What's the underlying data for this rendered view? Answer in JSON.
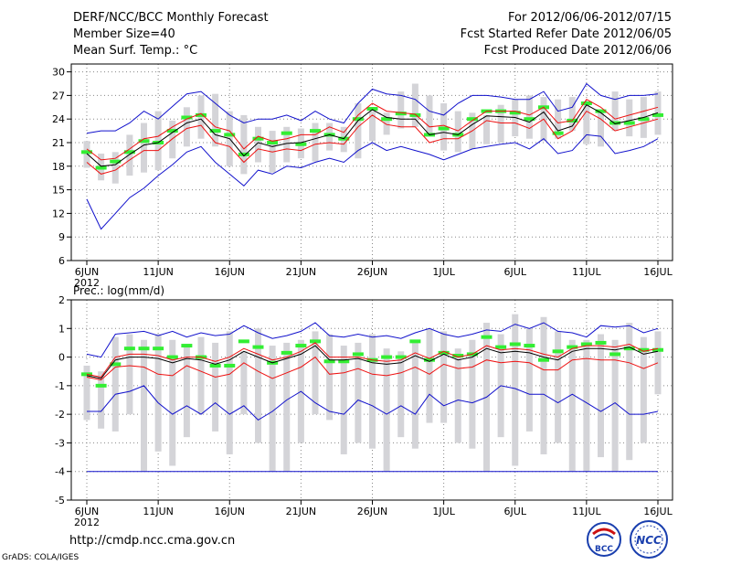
{
  "header": {
    "title": "DERF/NCC/BCC Monthly Forecast",
    "member_size": "Member Size=40",
    "variable": "Mean Surf. Temp.: °C",
    "period": "For 2012/06/06-2012/07/15",
    "started": "Fcst Started Refer Date 2012/06/05",
    "produced": "Fcst Produced Date 2012/06/06"
  },
  "footer": {
    "url": "http://cmdp.ncc.cma.gov.cn",
    "credit": "GrADS: COLA/IGES",
    "logo_left_text": "BCC",
    "logo_right_text": "NCC"
  },
  "colors": {
    "box": "#d4d4d8",
    "median": "#33ee33",
    "mean": "#000000",
    "inner": "#ee1111",
    "outer": "#1111cc",
    "grid": "#888888"
  },
  "chart_data": [
    {
      "type": "box-whisker-line",
      "title": "Mean Surf. Temp.: °C",
      "xlabel": "",
      "ylabel": "°C",
      "ylim": [
        6,
        31
      ],
      "yticks": [
        6,
        9,
        12,
        15,
        18,
        21,
        24,
        27,
        30
      ],
      "xticks": [
        "6JUN",
        "11JUN",
        "16JUN",
        "21JUN",
        "26JUN",
        "1JUL",
        "6JUL",
        "11JUL",
        "16JUL"
      ],
      "xtick_days": [
        0,
        5,
        10,
        15,
        20,
        25,
        30,
        35,
        40
      ],
      "year_label": "2012",
      "grid": "dotted",
      "box_top": [
        21.2,
        19.6,
        19.8,
        22.0,
        23.5,
        25.0,
        23.8,
        25.5,
        27.0,
        27.2,
        25.0,
        24.5,
        23.0,
        22.5,
        23.0,
        22.8,
        23.5,
        23.5,
        23.0,
        26.0,
        25.0,
        24.8,
        27.5,
        28.5,
        27.0,
        26.0,
        25.0,
        24.8,
        24.5,
        25.8,
        26.5,
        27.0,
        26.8,
        26.5,
        26.8,
        25.8,
        25.0,
        27.5,
        26.5,
        26.8,
        27.5
      ],
      "box_bottom": [
        17.8,
        16.2,
        15.8,
        16.8,
        17.2,
        17.5,
        19.0,
        20.5,
        21.5,
        20.5,
        18.0,
        17.0,
        18.5,
        17.2,
        18.5,
        19.0,
        18.6,
        20.0,
        19.8,
        19.0,
        21.2,
        22.0,
        22.8,
        23.0,
        22.0,
        20.0,
        19.8,
        20.2,
        20.8,
        21.0,
        21.8,
        21.5,
        21.2,
        21.5,
        22.5,
        20.8,
        20.5,
        22.5,
        21.8,
        21.6,
        22.0
      ],
      "median": [
        19.8,
        17.8,
        18.6,
        19.8,
        21.2,
        21.0,
        22.5,
        24.2,
        24.5,
        22.5,
        22.0,
        19.5,
        21.5,
        21.0,
        22.2,
        20.8,
        22.5,
        22.0,
        21.5,
        24.0,
        25.3,
        24.0,
        24.7,
        24.5,
        22.0,
        22.8,
        22.0,
        24.0,
        25.0,
        25.0,
        24.8,
        24.0,
        25.5,
        22.2,
        23.8,
        26.0,
        25.0,
        23.5,
        23.5,
        24.0,
        24.5
      ],
      "series": [
        {
          "name": "max",
          "color": "outer",
          "values": [
            22.2,
            22.5,
            22.5,
            23.5,
            25.0,
            24.0,
            25.6,
            27.2,
            27.5,
            26.0,
            24.5,
            23.5,
            24.0,
            24.0,
            24.5,
            23.8,
            25.0,
            24.0,
            23.5,
            26.0,
            27.8,
            27.2,
            27.0,
            26.5,
            25.0,
            24.5,
            26.0,
            27.0,
            27.0,
            26.8,
            26.5,
            26.5,
            27.5,
            25.0,
            25.5,
            28.5,
            27.0,
            26.5,
            27.0,
            27.0,
            27.2
          ]
        },
        {
          "name": "hi",
          "color": "inner",
          "values": [
            20.2,
            18.8,
            19.0,
            20.2,
            21.5,
            21.8,
            23.0,
            24.0,
            24.7,
            23.0,
            22.5,
            20.2,
            21.8,
            21.2,
            21.5,
            22.0,
            22.0,
            23.0,
            22.3,
            24.5,
            26.0,
            25.0,
            24.8,
            24.6,
            23.0,
            23.2,
            22.5,
            23.8,
            25.0,
            25.0,
            25.0,
            24.5,
            25.5,
            23.5,
            23.8,
            26.5,
            25.5,
            24.0,
            24.5,
            25.0,
            25.5
          ]
        },
        {
          "name": "mean",
          "color": "mean",
          "values": [
            19.6,
            18.0,
            18.2,
            19.5,
            20.7,
            21.0,
            22.3,
            23.5,
            24.0,
            22.0,
            21.5,
            19.3,
            21.0,
            20.5,
            20.9,
            21.0,
            21.5,
            22.0,
            21.5,
            23.8,
            25.2,
            24.2,
            24.0,
            24.0,
            22.0,
            22.3,
            22.0,
            23.3,
            24.4,
            24.3,
            24.2,
            23.6,
            24.9,
            22.5,
            23.1,
            25.8,
            24.8,
            23.4,
            23.8,
            24.2,
            24.8
          ]
        },
        {
          "name": "lo",
          "color": "inner",
          "values": [
            18.5,
            17.0,
            17.5,
            18.8,
            20.0,
            20.0,
            21.5,
            22.8,
            23.2,
            21.0,
            20.5,
            18.5,
            20.2,
            19.8,
            20.2,
            20.0,
            20.8,
            21.0,
            20.8,
            23.0,
            24.5,
            23.3,
            23.0,
            23.0,
            21.0,
            21.5,
            21.5,
            22.5,
            23.8,
            23.5,
            23.5,
            22.8,
            24.0,
            21.5,
            22.5,
            25.0,
            24.0,
            22.5,
            23.0,
            23.5,
            24.0
          ]
        },
        {
          "name": "min",
          "color": "outer",
          "values": [
            13.8,
            10.0,
            12.0,
            14.0,
            15.2,
            16.8,
            18.2,
            19.8,
            20.5,
            18.5,
            17.0,
            15.5,
            17.5,
            17.0,
            18.0,
            17.8,
            18.5,
            19.0,
            18.5,
            20.0,
            21.0,
            20.0,
            20.5,
            20.0,
            19.5,
            18.8,
            19.5,
            20.2,
            20.5,
            20.8,
            21.0,
            20.2,
            21.5,
            19.6,
            20.0,
            22.0,
            21.8,
            19.6,
            20.0,
            20.5,
            21.5
          ]
        }
      ]
    },
    {
      "type": "box-whisker-line",
      "title": "Prec.: log(mm/d)",
      "xlabel": "",
      "ylabel": "log(mm/d)",
      "ylim": [
        -5,
        2
      ],
      "yticks": [
        -5,
        -4,
        -3,
        -2,
        -1,
        0,
        1,
        2
      ],
      "xticks": [
        "6JUN",
        "11JUN",
        "16JUN",
        "21JUN",
        "26JUN",
        "1JUL",
        "6JUL",
        "11JUL",
        "16JUL"
      ],
      "xtick_days": [
        0,
        5,
        10,
        15,
        20,
        25,
        30,
        35,
        40
      ],
      "year_label": "2012",
      "grid": "dotted",
      "box_top": [
        -0.3,
        -0.5,
        0.7,
        0.8,
        0.6,
        0.8,
        0.6,
        0.4,
        0.7,
        0.5,
        0.9,
        0.2,
        1.0,
        0.4,
        0.5,
        0.6,
        0.9,
        0.8,
        0.4,
        0.5,
        0.8,
        0.3,
        0.2,
        0.6,
        1.0,
        0.9,
        0.3,
        0.6,
        1.2,
        0.8,
        1.5,
        1.0,
        1.4,
        0.9,
        0.6,
        0.6,
        0.8,
        0.6,
        1.2,
        0.7,
        0.9
      ],
      "box_bottom": [
        -2.2,
        -2.5,
        -2.6,
        -2.0,
        -4.0,
        -3.3,
        -3.8,
        -2.8,
        -2.0,
        -2.6,
        -3.4,
        -2.0,
        -3.0,
        -4.0,
        -4.0,
        -3.0,
        -2.0,
        -2.2,
        -3.4,
        -3.0,
        -3.2,
        -4.0,
        -2.8,
        -3.2,
        -2.3,
        -2.3,
        -3.0,
        -3.2,
        -4.0,
        -2.8,
        -3.8,
        -2.6,
        -3.4,
        -3.0,
        -4.0,
        -4.0,
        -3.5,
        -4.0,
        -3.6,
        -3.0,
        -1.3
      ],
      "median": [
        -0.6,
        -1.0,
        -0.25,
        0.3,
        0.3,
        0.3,
        0.0,
        0.4,
        0.0,
        -0.3,
        -0.3,
        0.55,
        0.35,
        -0.2,
        0.15,
        0.4,
        0.55,
        -0.15,
        -0.15,
        0.1,
        -0.1,
        0.0,
        0.0,
        0.55,
        -0.1,
        0.15,
        0.05,
        0.1,
        0.7,
        0.35,
        0.45,
        0.4,
        -0.1,
        0.2,
        0.35,
        0.45,
        0.5,
        0.1,
        0.3,
        0.25,
        0.25
      ],
      "series": [
        {
          "name": "max",
          "color": "outer",
          "values": [
            0.1,
            0.0,
            0.8,
            0.85,
            0.9,
            0.75,
            0.9,
            0.7,
            0.85,
            0.75,
            0.8,
            1.1,
            0.85,
            0.65,
            0.75,
            0.9,
            1.2,
            0.75,
            0.7,
            0.8,
            0.7,
            0.75,
            0.65,
            0.85,
            1.0,
            0.8,
            0.7,
            0.8,
            0.95,
            0.9,
            1.15,
            1.0,
            1.2,
            0.9,
            0.85,
            0.7,
            1.1,
            1.05,
            1.1,
            0.85,
            1.0
          ]
        },
        {
          "name": "hi",
          "color": "inner",
          "values": [
            -0.6,
            -0.7,
            0.0,
            0.1,
            0.1,
            0.05,
            -0.1,
            0.0,
            0.0,
            -0.15,
            0.0,
            0.3,
            0.1,
            -0.1,
            0.0,
            0.2,
            0.5,
            0.0,
            0.0,
            0.0,
            -0.1,
            -0.15,
            -0.1,
            0.15,
            -0.05,
            0.2,
            0.0,
            0.1,
            0.4,
            0.25,
            0.3,
            0.25,
            0.1,
            0.0,
            0.3,
            0.4,
            0.4,
            0.35,
            0.45,
            0.2,
            0.3
          ]
        },
        {
          "name": "mean",
          "color": "mean",
          "values": [
            -0.65,
            -0.75,
            -0.1,
            0.0,
            0.0,
            -0.05,
            -0.2,
            -0.05,
            -0.1,
            -0.25,
            -0.1,
            0.2,
            0.0,
            -0.2,
            -0.05,
            0.1,
            0.4,
            -0.1,
            -0.1,
            -0.05,
            -0.2,
            -0.25,
            -0.2,
            0.05,
            -0.15,
            0.1,
            -0.1,
            0.0,
            0.3,
            0.15,
            0.2,
            0.15,
            0.0,
            -0.1,
            0.2,
            0.3,
            0.3,
            0.25,
            0.35,
            0.1,
            0.2
          ]
        },
        {
          "name": "lo",
          "color": "inner",
          "values": [
            -0.7,
            -0.8,
            -0.35,
            -0.3,
            -0.35,
            -0.6,
            -0.65,
            -0.3,
            -0.5,
            -0.7,
            -0.6,
            -0.2,
            -0.5,
            -0.75,
            -0.55,
            -0.35,
            0.0,
            -0.6,
            -0.55,
            -0.4,
            -0.6,
            -0.65,
            -0.55,
            -0.35,
            -0.6,
            -0.25,
            -0.4,
            -0.35,
            -0.1,
            -0.2,
            -0.15,
            -0.2,
            -0.45,
            -0.45,
            -0.1,
            -0.05,
            -0.1,
            -0.1,
            -0.2,
            -0.4,
            -0.2
          ]
        },
        {
          "name": "min",
          "color": "outer",
          "values": [
            -1.9,
            -1.9,
            -1.3,
            -1.2,
            -1.0,
            -1.6,
            -2.0,
            -1.7,
            -2.0,
            -1.6,
            -2.0,
            -1.7,
            -2.2,
            -1.9,
            -1.5,
            -1.2,
            -1.6,
            -1.9,
            -2.0,
            -1.5,
            -1.7,
            -2.0,
            -1.7,
            -2.0,
            -1.3,
            -1.7,
            -1.5,
            -1.6,
            -1.4,
            -1.0,
            -1.1,
            -1.3,
            -1.3,
            -1.6,
            -1.3,
            -1.6,
            -1.9,
            -1.6,
            -2.0,
            -2.0,
            -1.9
          ]
        },
        {
          "name": "floor",
          "color": "outer",
          "values": [
            -4.0,
            -4.0,
            -4.0,
            -4.0,
            -4.0,
            -4.0,
            -4.0,
            -4.0,
            -4.0,
            -4.0,
            -4.0,
            -4.0,
            -4.0,
            -4.0,
            -4.0,
            -4.0,
            -4.0,
            -4.0,
            -4.0,
            -4.0,
            -4.0,
            -4.0,
            -4.0,
            -4.0,
            -4.0,
            -4.0,
            -4.0,
            -4.0,
            -4.0,
            -4.0,
            -4.0,
            -4.0,
            -4.0,
            -4.0,
            -4.0,
            -4.0,
            -4.0,
            -4.0,
            -4.0,
            -4.0,
            -4.0
          ]
        }
      ]
    }
  ]
}
